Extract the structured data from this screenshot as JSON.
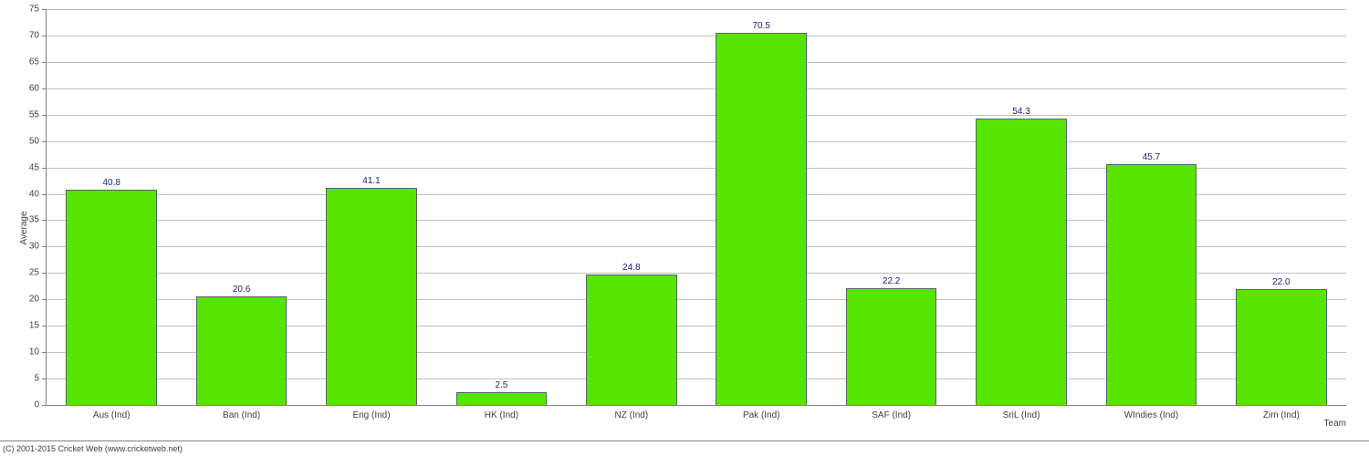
{
  "chart": {
    "type": "bar",
    "categories": [
      "Aus (Ind)",
      "Ban (Ind)",
      "Eng (Ind)",
      "HK (Ind)",
      "NZ (Ind)",
      "Pak (Ind)",
      "SAF (Ind)",
      "SriL (Ind)",
      "WIndies (Ind)",
      "Zim (Ind)"
    ],
    "values": [
      40.8,
      20.6,
      41.1,
      2.5,
      24.8,
      70.5,
      22.2,
      54.3,
      45.7,
      22.0
    ],
    "value_labels": [
      "40.8",
      "20.6",
      "41.1",
      "2.5",
      "24.8",
      "70.5",
      "22.2",
      "54.3",
      "45.7",
      "22.0"
    ],
    "bar_color": "#55e500",
    "bar_border_color": "#606060",
    "grid_color": "#c0c0c0",
    "axis_color": "#808080",
    "value_label_color": "#20207f",
    "tick_label_color": "#404040",
    "background_color": "#ffffff",
    "ylabel": "Average",
    "xlabel": "Team",
    "ylim_min": 0,
    "ylim_max": 75,
    "ytick_step": 5,
    "bar_width_pct": 70,
    "tick_fontsize": 10,
    "label_fontsize": 10,
    "value_fontsize": 10
  },
  "copyright": "(C) 2001-2015 Cricket Web (www.cricketweb.net)"
}
